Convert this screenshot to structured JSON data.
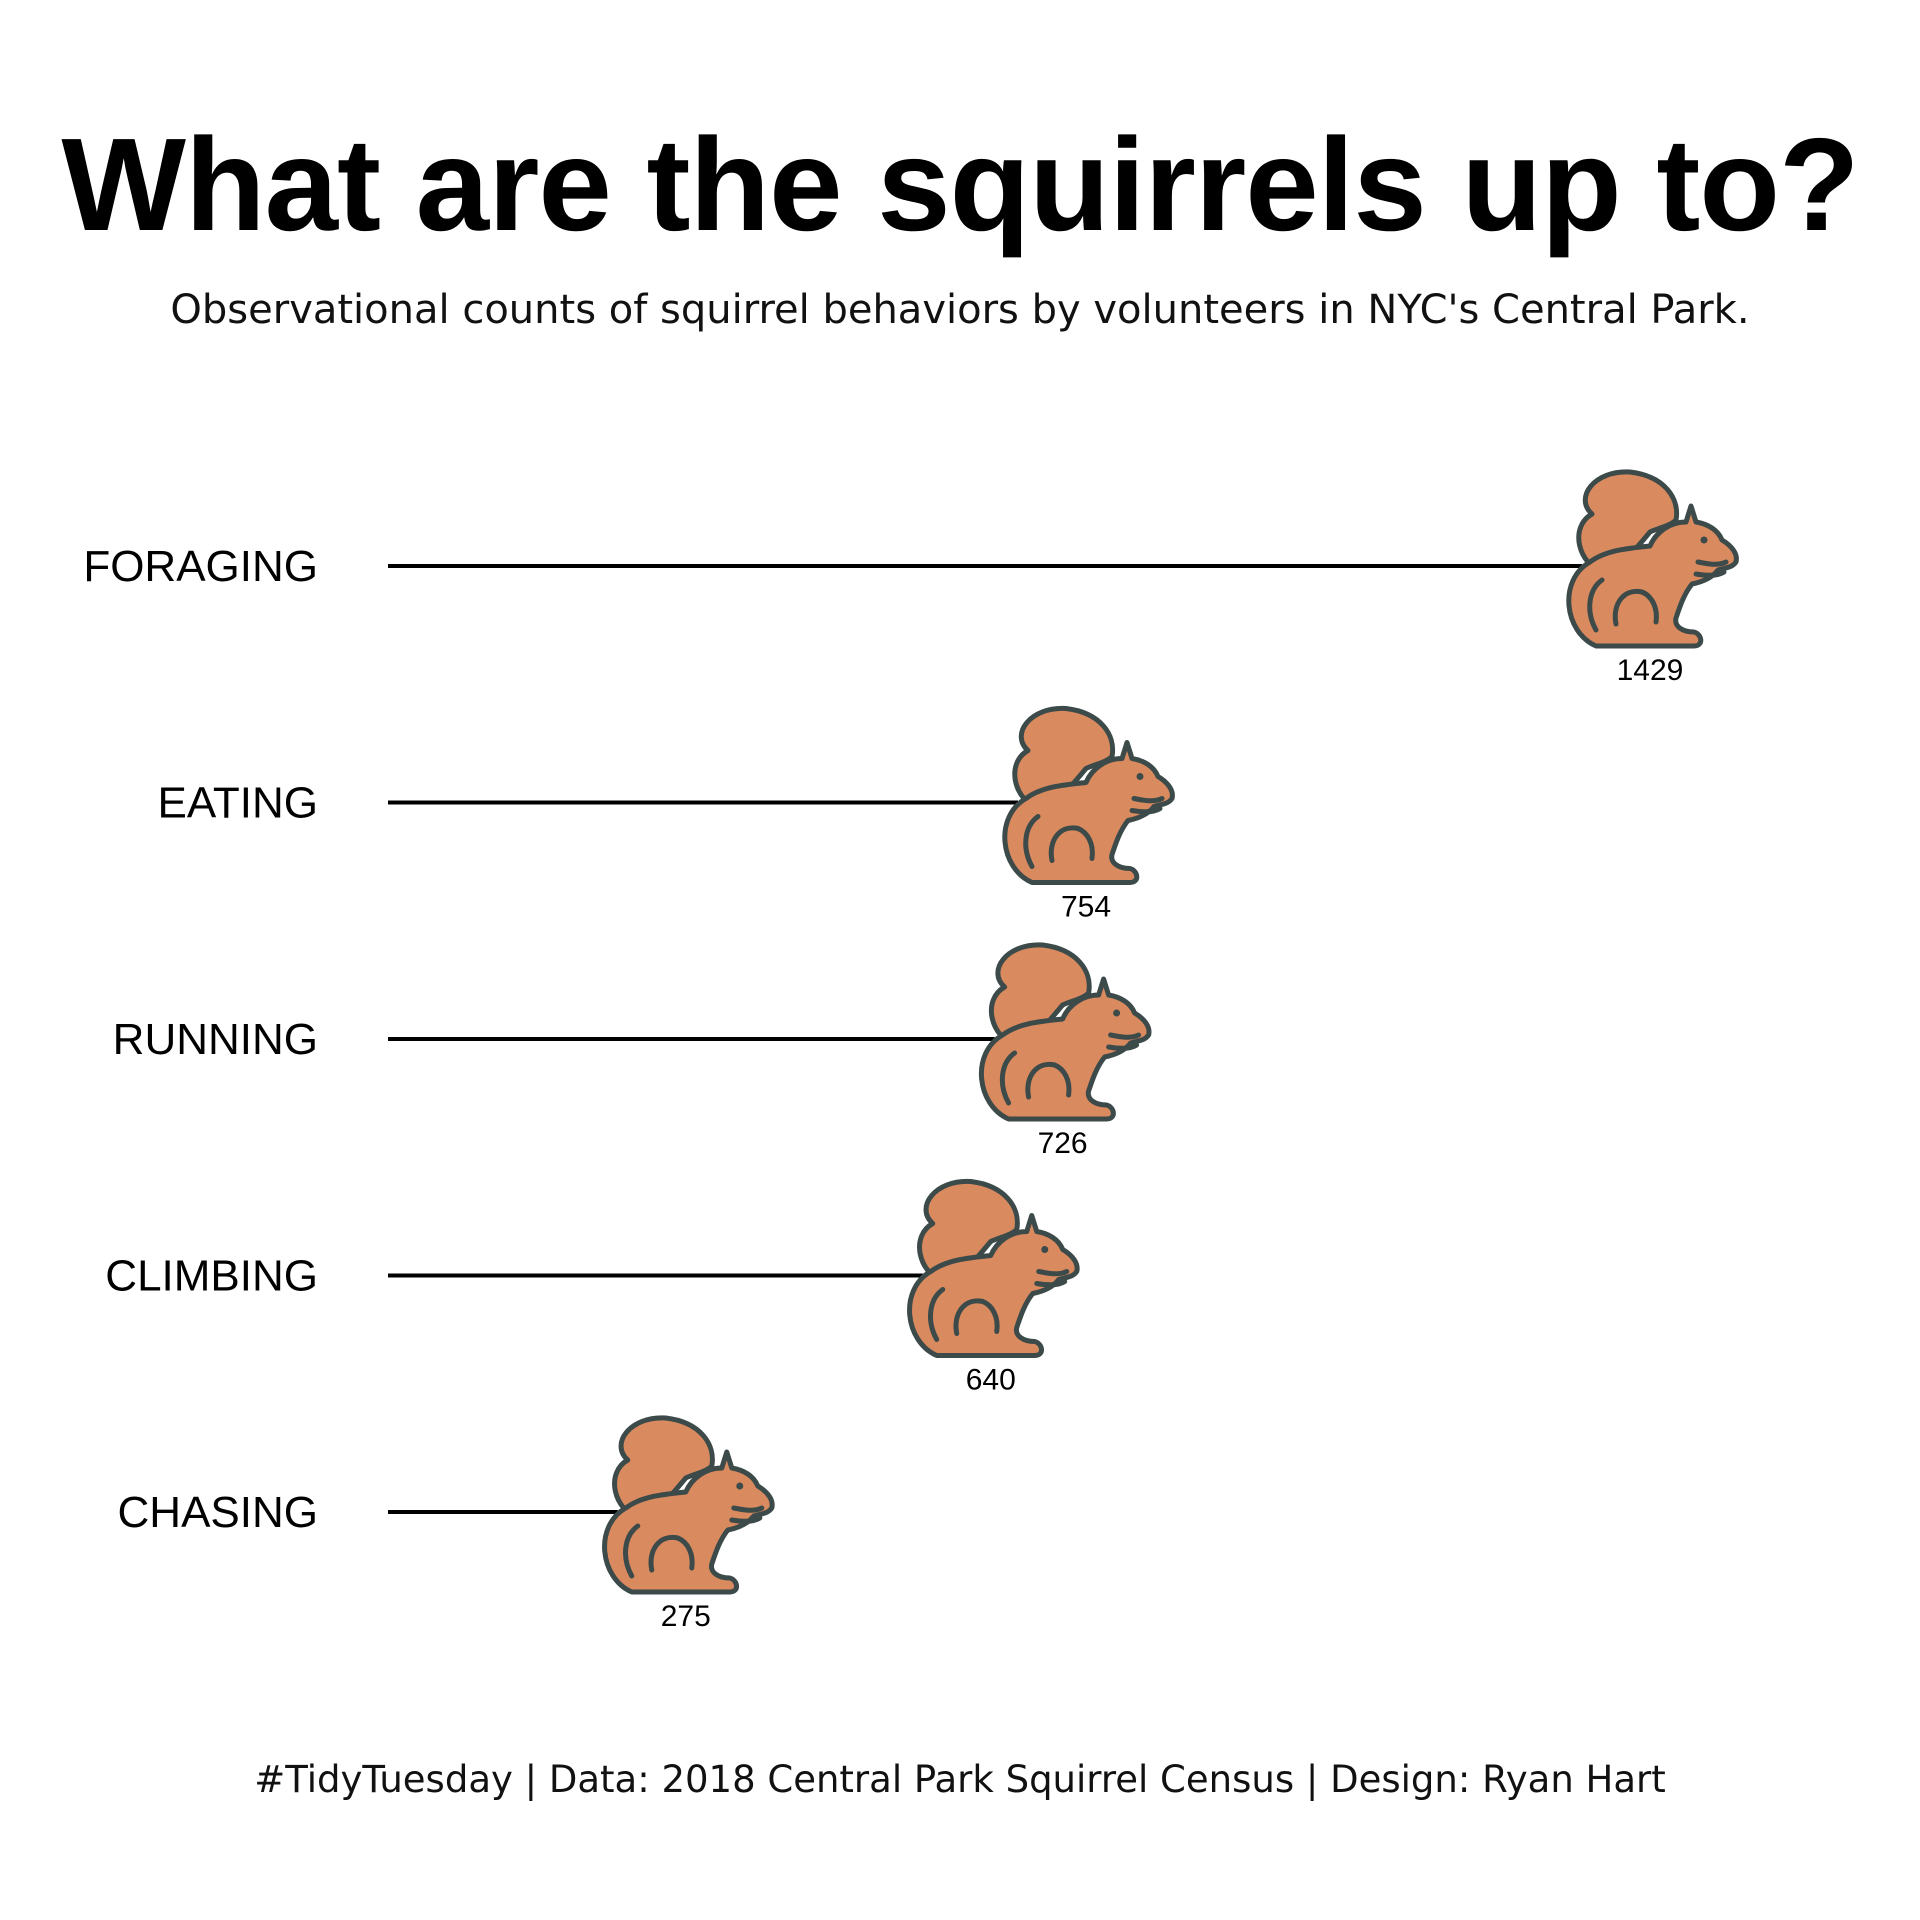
{
  "chart_data": {
    "type": "lollipop",
    "title": "What are the squirrels up to?",
    "subtitle": "Observational counts of squirrel behaviors by volunteers in NYC's Central Park.",
    "caption": "#TidyTuesday | Data: 2018 Central Park Squirrel Census | Design: Ryan Hart",
    "categories": [
      "FORAGING",
      "EATING",
      "RUNNING",
      "CLIMBING",
      "CHASING"
    ],
    "values": [
      1429,
      754,
      726,
      640,
      275
    ],
    "marker": "squirrel-icon",
    "colors": {
      "squirrel_fill": "#d98b5f",
      "squirrel_stroke": "#3d4a4a",
      "line": "#000000"
    },
    "grid": false,
    "legend": "none"
  }
}
